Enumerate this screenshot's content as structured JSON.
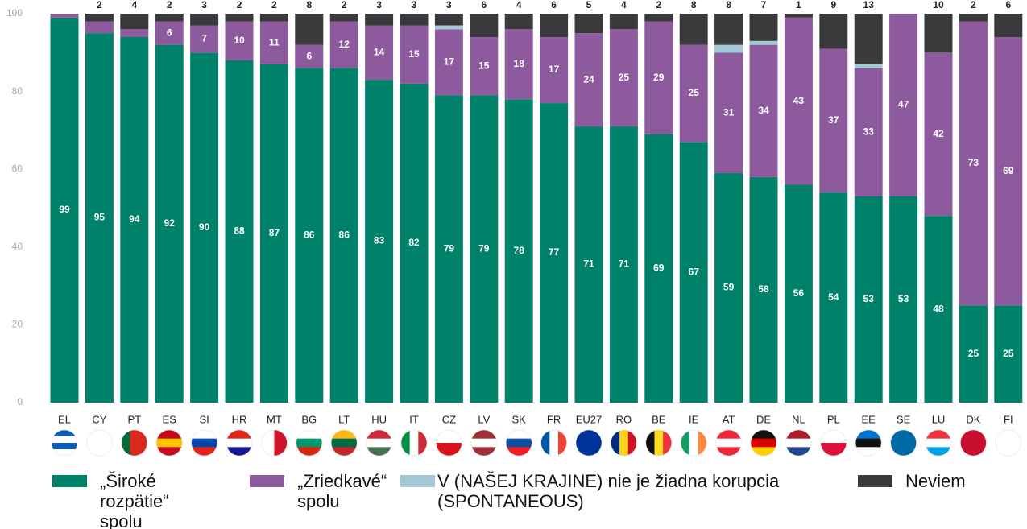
{
  "chart_data": {
    "type": "stacked_bar",
    "categories": [
      "EL",
      "CY",
      "PT",
      "ES",
      "SI",
      "HR",
      "MT",
      "BG",
      "LT",
      "HU",
      "IT",
      "CZ",
      "LV",
      "SK",
      "FR",
      "EU27",
      "RO",
      "BE",
      "IE",
      "AT",
      "DE",
      "NL",
      "PL",
      "EE",
      "SE",
      "LU",
      "DK",
      "FI"
    ],
    "series": [
      {
        "name": "„Široké rozpätie“ spolu",
        "color": "#00826a",
        "values": [
          99,
          95,
          94,
          92,
          90,
          88,
          87,
          86,
          86,
          83,
          82,
          79,
          79,
          78,
          77,
          71,
          71,
          69,
          67,
          59,
          58,
          56,
          54,
          53,
          53,
          48,
          25,
          25
        ]
      },
      {
        "name": "„Zriedkavé“ spolu",
        "color": "#8e5a9e",
        "values": [
          1,
          3,
          2,
          6,
          7,
          10,
          11,
          6,
          12,
          14,
          15,
          17,
          15,
          18,
          17,
          24,
          25,
          29,
          25,
          31,
          34,
          43,
          37,
          33,
          47,
          42,
          73,
          69
        ],
        "value_labels": [
          null,
          null,
          null,
          "6",
          "7",
          "10",
          "11",
          "6",
          "12",
          "14",
          "15",
          "17",
          "15",
          "18",
          "17",
          "24",
          "25",
          "29",
          "25",
          "31",
          "34",
          "43",
          "37",
          "33",
          "47",
          "42",
          "73",
          "69"
        ]
      },
      {
        "name": "V (NAŠEJ KRAJINE) nie je žiadna korupcia (SPONTANEOUS)",
        "color": "#a3c8d3",
        "values": [
          0,
          0,
          0,
          0,
          0,
          0,
          0,
          0,
          0,
          0,
          0,
          1,
          0,
          0,
          0,
          0,
          0,
          0,
          0,
          2,
          1,
          0,
          0,
          1,
          0,
          0,
          0,
          0
        ],
        "value_labels": [
          null,
          null,
          null,
          null,
          null,
          null,
          null,
          null,
          null,
          null,
          null,
          null,
          null,
          null,
          null,
          null,
          null,
          null,
          null,
          null,
          null,
          null,
          null,
          null,
          null,
          null,
          null,
          null
        ]
      },
      {
        "name": "Neviem",
        "color": "#3a3a3c",
        "values": [
          0,
          2,
          4,
          2,
          3,
          2,
          2,
          8,
          2,
          3,
          3,
          3,
          6,
          4,
          6,
          5,
          4,
          2,
          8,
          8,
          7,
          1,
          9,
          13,
          0,
          10,
          2,
          6
        ],
        "value_labels": [
          null,
          "2",
          "4",
          "2",
          "3",
          "2",
          "2",
          "8",
          "2",
          "3",
          "3",
          "3",
          "6",
          "4",
          "6",
          "5",
          "4",
          "2",
          "8",
          "8",
          "7",
          "1",
          "9",
          "13",
          null,
          "10",
          "2",
          "6"
        ]
      }
    ],
    "ylim": [
      0,
      100
    ],
    "yticks": [
      0,
      20,
      40,
      60,
      80,
      100
    ],
    "grid": false
  }
}
